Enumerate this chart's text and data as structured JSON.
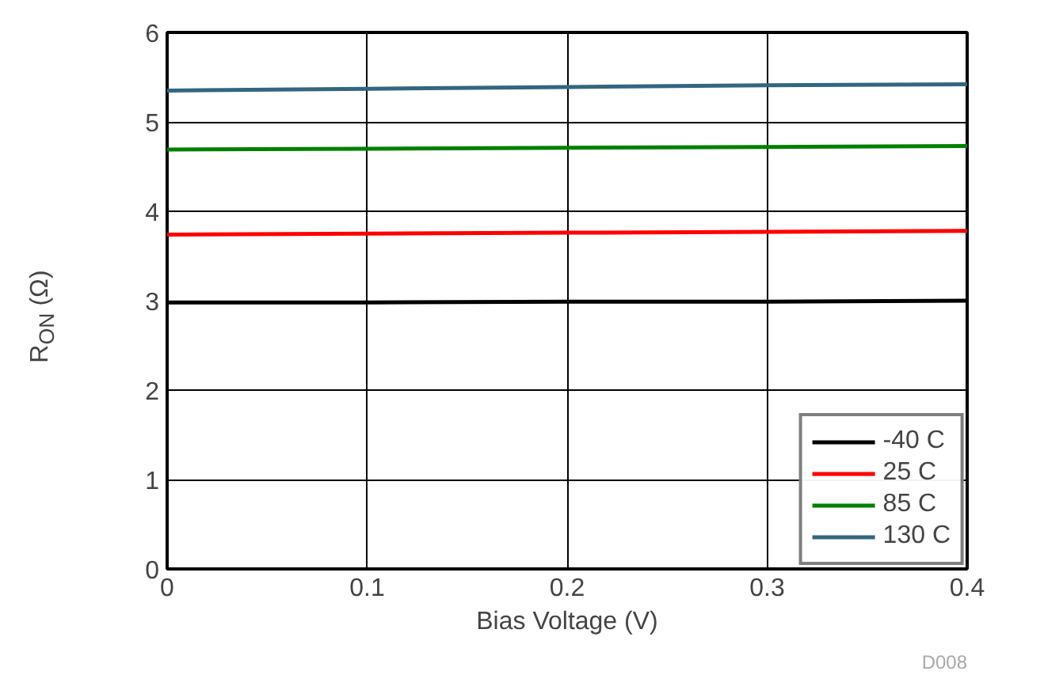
{
  "chart_data": {
    "type": "line",
    "xlabel": "Bias Voltage (V)",
    "ylabel": "R$_{ON}$ (Ω)",
    "x": [
      0,
      0.1,
      0.2,
      0.3,
      0.4
    ],
    "series": [
      {
        "name": "-40 C",
        "color": "#000000",
        "values": [
          2.98,
          2.98,
          2.99,
          2.99,
          3.0
        ]
      },
      {
        "name": "25 C",
        "color": "#ff0000",
        "values": [
          3.74,
          3.75,
          3.76,
          3.77,
          3.78
        ]
      },
      {
        "name": "85 C",
        "color": "#008000",
        "values": [
          4.69,
          4.7,
          4.71,
          4.72,
          4.73
        ]
      },
      {
        "name": "130 C",
        "color": "#336680",
        "values": [
          5.35,
          5.37,
          5.39,
          5.41,
          5.42
        ]
      }
    ],
    "xlim": [
      0,
      0.4
    ],
    "xticks": [
      0,
      0.1,
      0.2,
      0.3,
      0.4
    ],
    "ylim": [
      0,
      6
    ],
    "yticks": [
      0,
      1,
      2,
      3,
      4,
      5,
      6
    ],
    "grid": true,
    "legend": "bottom right",
    "annotations": [
      "D008"
    ]
  }
}
